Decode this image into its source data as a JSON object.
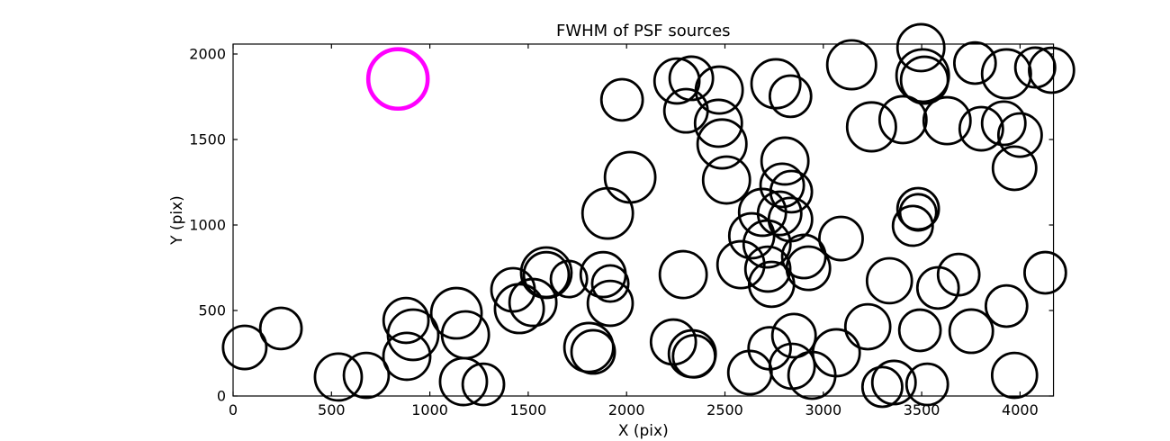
{
  "figure": {
    "title": "FWHM of PSF sources",
    "x_axis_label": "X (pix)",
    "y_axis_label": "Y (pix)"
  },
  "chart_data": {
    "type": "scatter",
    "title": "FWHM of PSF sources",
    "xlabel": "X (pix)",
    "ylabel": "Y (pix)",
    "xlim": [
      0,
      4170
    ],
    "ylim": [
      0,
      2058
    ],
    "xticks": [
      0,
      500,
      1000,
      1500,
      2000,
      2500,
      3000,
      3500,
      4000
    ],
    "yticks": [
      0,
      500,
      1000,
      1500,
      2000
    ],
    "grid": false,
    "legend_position": "none",
    "marker_style": "open-circle",
    "colors": {
      "sources": "#000000",
      "highlight": "#ff00ff",
      "spine": "#000000",
      "background": "#ffffff"
    },
    "sources": [
      [
        59,
        284,
        110
      ],
      [
        243,
        395,
        105
      ],
      [
        535,
        111,
        119
      ],
      [
        677,
        121,
        114
      ],
      [
        879,
        442,
        114
      ],
      [
        915,
        358,
        128
      ],
      [
        883,
        232,
        119
      ],
      [
        1135,
        484,
        128
      ],
      [
        1181,
        358,
        119
      ],
      [
        1171,
        84,
        119
      ],
      [
        1272,
        68,
        105
      ],
      [
        1423,
        621,
        110
      ],
      [
        1455,
        511,
        124
      ],
      [
        1524,
        547,
        119
      ],
      [
        1592,
        721,
        128
      ],
      [
        1592,
        710,
        114
      ],
      [
        1707,
        684,
        92
      ],
      [
        1881,
        710,
        114
      ],
      [
        1917,
        658,
        92
      ],
      [
        1917,
        542,
        114
      ],
      [
        1808,
        284,
        124
      ],
      [
        1830,
        258,
        110
      ],
      [
        2238,
        316,
        114
      ],
      [
        2334,
        247,
        119
      ],
      [
        2343,
        232,
        107
      ],
      [
        1904,
        1068,
        128
      ],
      [
        2018,
        1279,
        128
      ],
      [
        1977,
        1732,
        105
      ],
      [
        2256,
        1842,
        114
      ],
      [
        2329,
        1858,
        110
      ],
      [
        2471,
        1789,
        119
      ],
      [
        2302,
        1668,
        110
      ],
      [
        2467,
        1595,
        119
      ],
      [
        2485,
        1474,
        124
      ],
      [
        2508,
        1263,
        119
      ],
      [
        2759,
        1826,
        124
      ],
      [
        2833,
        1753,
        105
      ],
      [
        2805,
        1374,
        119
      ],
      [
        2791,
        1232,
        110
      ],
      [
        2837,
        1195,
        105
      ],
      [
        2691,
        1074,
        119
      ],
      [
        2778,
        1068,
        110
      ],
      [
        2636,
        937,
        114
      ],
      [
        2714,
        889,
        119
      ],
      [
        2581,
        768,
        119
      ],
      [
        2718,
        742,
        114
      ],
      [
        2737,
        653,
        114
      ],
      [
        2833,
        1032,
        110
      ],
      [
        2901,
        816,
        110
      ],
      [
        2924,
        747,
        110
      ],
      [
        3090,
        921,
        110
      ],
      [
        3144,
        1937,
        124
      ],
      [
        3496,
        2037,
        119
      ],
      [
        3505,
        1874,
        133
      ],
      [
        3514,
        1847,
        119
      ],
      [
        3771,
        1947,
        105
      ],
      [
        3931,
        1884,
        124
      ],
      [
        4077,
        1921,
        101
      ],
      [
        4160,
        1905,
        114
      ],
      [
        3245,
        1574,
        124
      ],
      [
        3405,
        1616,
        119
      ],
      [
        3629,
        1610,
        119
      ],
      [
        3803,
        1563,
        110
      ],
      [
        3917,
        1595,
        110
      ],
      [
        4000,
        1526,
        110
      ],
      [
        3972,
        1332,
        110
      ],
      [
        4128,
        721,
        105
      ],
      [
        2288,
        710,
        119
      ],
      [
        3482,
        1095,
        105
      ],
      [
        3482,
        1074,
        92
      ],
      [
        3455,
        995,
        101
      ],
      [
        3336,
        674,
        114
      ],
      [
        3583,
        632,
        105
      ],
      [
        3688,
        710,
        105
      ],
      [
        3226,
        405,
        114
      ],
      [
        3491,
        384,
        105
      ],
      [
        3752,
        379,
        110
      ],
      [
        3931,
        526,
        105
      ],
      [
        3066,
        253,
        119
      ],
      [
        2851,
        353,
        110
      ],
      [
        2727,
        279,
        107
      ],
      [
        2627,
        137,
        110
      ],
      [
        2842,
        174,
        114
      ],
      [
        2942,
        121,
        119
      ],
      [
        3359,
        79,
        110
      ],
      [
        3300,
        53,
        101
      ],
      [
        3528,
        68,
        105
      ],
      [
        3972,
        121,
        114
      ]
    ],
    "highlighted_source": [
      838,
      1854,
      151
    ]
  }
}
